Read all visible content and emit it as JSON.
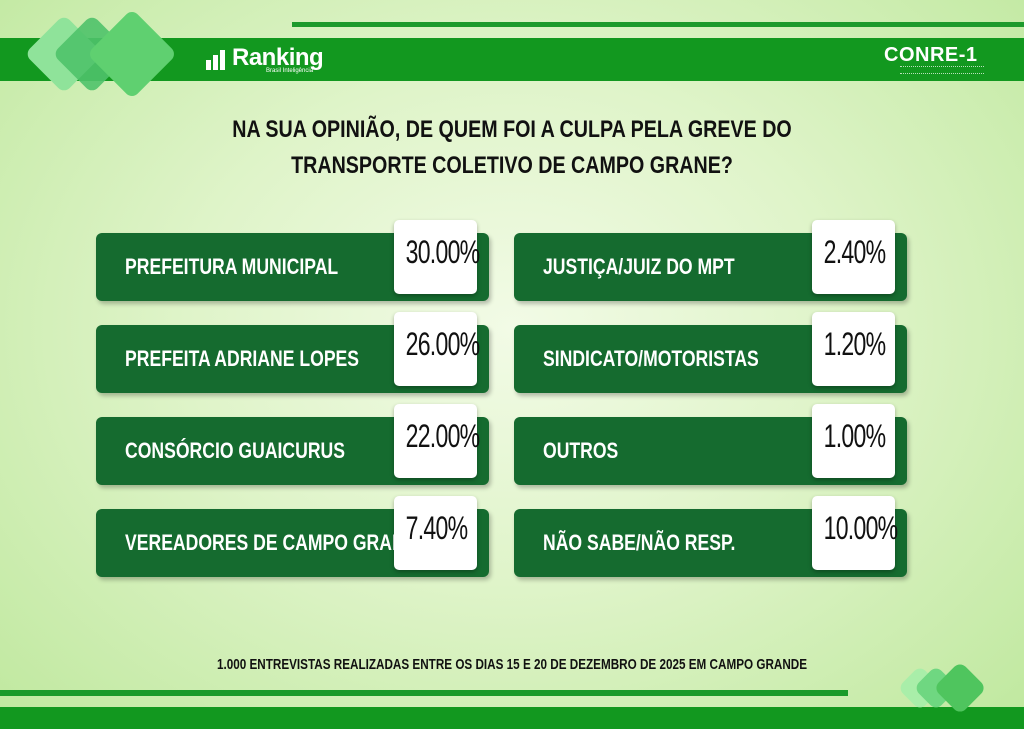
{
  "header": {
    "brand_name": "Ranking",
    "brand_tagline": "Brasil Inteligência",
    "partner_logo": "CONRE-1"
  },
  "chart_data": {
    "type": "table",
    "title": "NA SUA OPINIÃO, DE QUEM FOI A CULPA PELA GREVE DO TRANSPORTE COLETIVO DE CAMPO GRANE?",
    "categories": [
      "PREFEITURA MUNICIPAL",
      "PREFEITA ADRIANE LOPES",
      "CONSÓRCIO GUAICURUS",
      "VEREADORES DE CAMPO GRANDE",
      "JUSTIÇA/JUIZ DO MPT",
      "SINDICATO/MOTORISTAS",
      "OUTROS",
      "NÃO SABE/NÃO RESP."
    ],
    "values": [
      30.0,
      26.0,
      22.0,
      7.4,
      2.4,
      1.2,
      1.0,
      10.0
    ],
    "value_labels": [
      "30.00%",
      "26.00%",
      "22.00%",
      "7.40%",
      "2.40%",
      "1.20%",
      "1.00%",
      "10.00%"
    ],
    "unit": "%"
  },
  "footnote": "1.000 ENTREVISTAS REALIZADAS ENTRE OS DIAS 15 E 20 DE DEZEMBRO DE 2025 EM CAMPO GRANDE",
  "colors": {
    "band_green": "#12981f",
    "card_green": "#156b2f",
    "value_box": "#ffffff"
  }
}
